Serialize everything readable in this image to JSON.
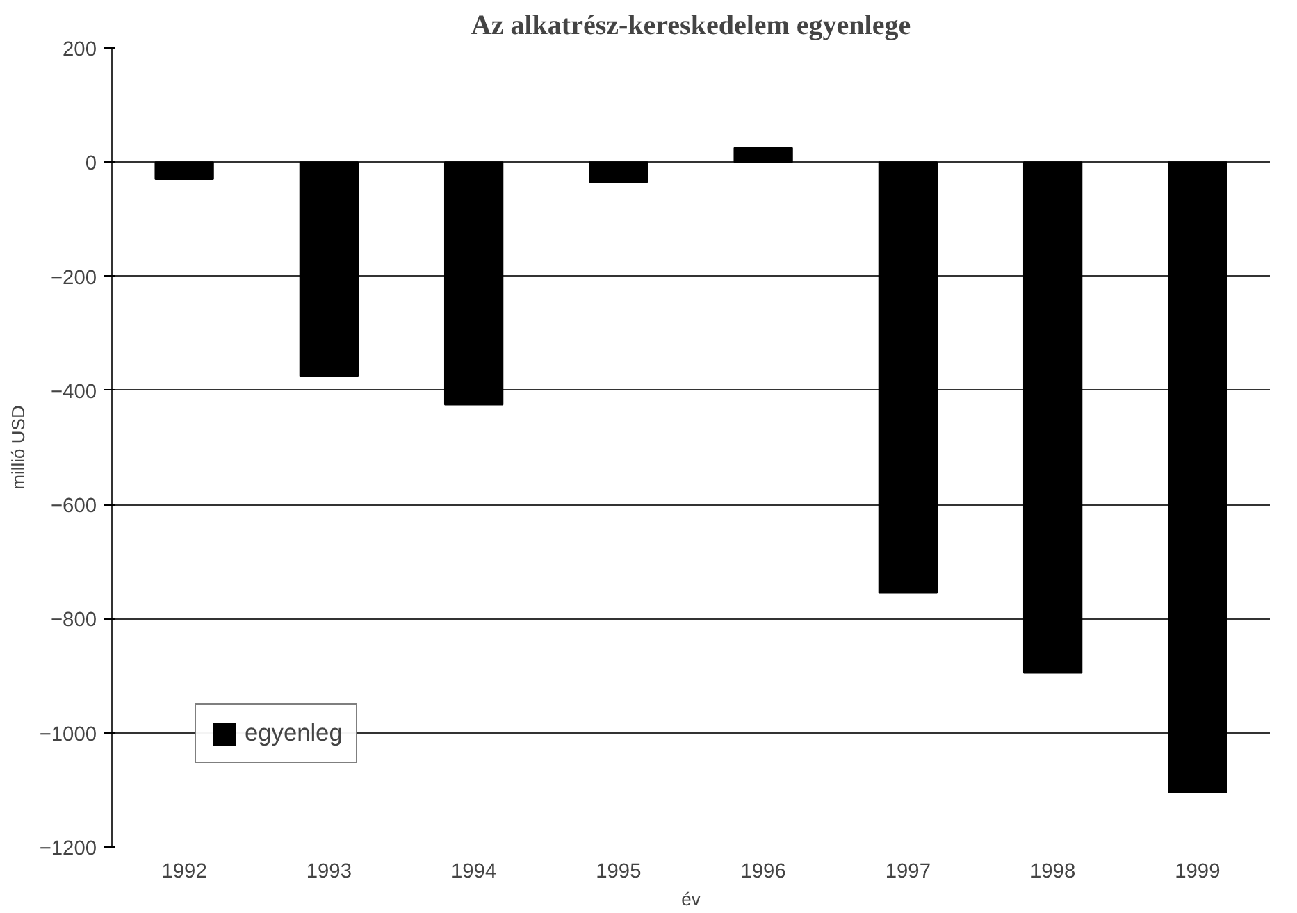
{
  "chart_data": {
    "type": "bar",
    "title": "Az alkatrész-kereskedelem egyenlege",
    "xlabel": "év",
    "ylabel": "millió USD",
    "categories": [
      "1992",
      "1993",
      "1994",
      "1995",
      "1996",
      "1997",
      "1998",
      "1999"
    ],
    "series": [
      {
        "name": "egyenleg",
        "color": "#000000",
        "values": [
          -30,
          -375,
          -425,
          -35,
          25,
          -755,
          -895,
          -1105
        ]
      }
    ],
    "ylim": [
      -1200,
      200
    ],
    "yticks": [
      {
        "value": -1200,
        "label": "−1200"
      },
      {
        "value": -1000,
        "label": "−1000"
      },
      {
        "value": -800,
        "label": "−800"
      },
      {
        "value": -600,
        "label": "−600"
      },
      {
        "value": -400,
        "label": "−400"
      },
      {
        "value": -200,
        "label": "−200"
      },
      0,
      200
    ],
    "grid": "y",
    "legend": "bottom left"
  }
}
